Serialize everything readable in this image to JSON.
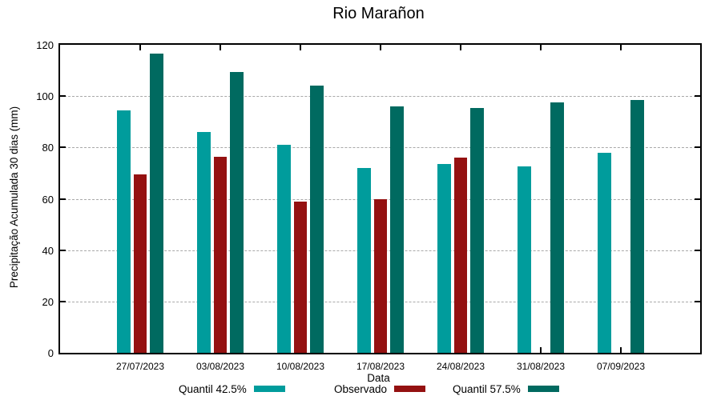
{
  "chart_data": {
    "type": "bar",
    "title": "Rio Marañon",
    "xlabel": "Data",
    "ylabel": "Precipitação Acumulada 30 dias (mm)",
    "categories": [
      "27/07/2023",
      "03/08/2023",
      "10/08/2023",
      "17/08/2023",
      "24/08/2023",
      "31/08/2023",
      "07/09/2023"
    ],
    "series": [
      {
        "name": "Quantil 42.5%",
        "color": "#009C9C",
        "values": [
          94.5,
          86,
          81,
          72,
          73.5,
          72.5,
          78
        ]
      },
      {
        "name": "Observado",
        "color": "#941111",
        "values": [
          69.5,
          76.5,
          59,
          60,
          76,
          null,
          null
        ]
      },
      {
        "name": "Quantil 57.5%",
        "color": "#006A60",
        "values": [
          116.5,
          109.5,
          104,
          96,
          95.5,
          97.5,
          98.5
        ]
      }
    ],
    "ylim": [
      0,
      120
    ],
    "yticks": [
      0,
      20,
      40,
      60,
      80,
      100,
      120
    ],
    "grid": "horizontal-dashed",
    "legend_position": "bottom",
    "axis_color": "#000000",
    "grid_color": "#a9a9a9"
  }
}
